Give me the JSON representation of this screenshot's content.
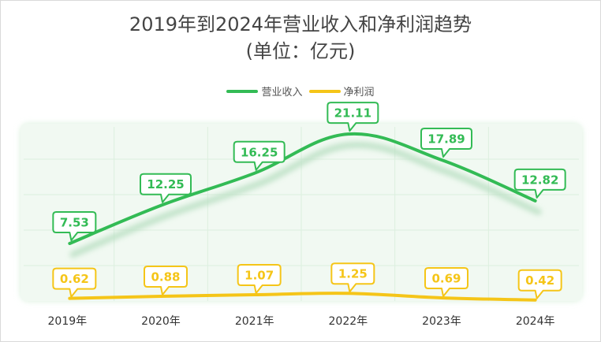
{
  "chart_data": {
    "type": "line",
    "title": "2019年到2024年营业收入和净利润趋势",
    "subtitle": "(单位：亿元)",
    "categories": [
      "2019年",
      "2020年",
      "2021年",
      "2022年",
      "2023年",
      "2024年"
    ],
    "series": [
      {
        "name": "营业收入",
        "values": [
          7.53,
          12.25,
          16.25,
          21.11,
          17.89,
          12.82
        ],
        "labels": [
          "7.53",
          "12.25",
          "16.25",
          "21.11",
          "17.89",
          "12.82"
        ],
        "color": "#33bb55"
      },
      {
        "name": "净利润",
        "values": [
          0.62,
          0.88,
          1.07,
          1.25,
          0.69,
          0.42
        ],
        "labels": [
          "0.62",
          "0.88",
          "1.07",
          "1.25",
          "0.69",
          "0.42"
        ],
        "color": "#f5c518"
      }
    ],
    "ylim": [
      0,
      22
    ],
    "grid": true,
    "legend_position": "top-center",
    "plot_background": "#f1f9f2",
    "grid_color": "#dcefdf"
  }
}
